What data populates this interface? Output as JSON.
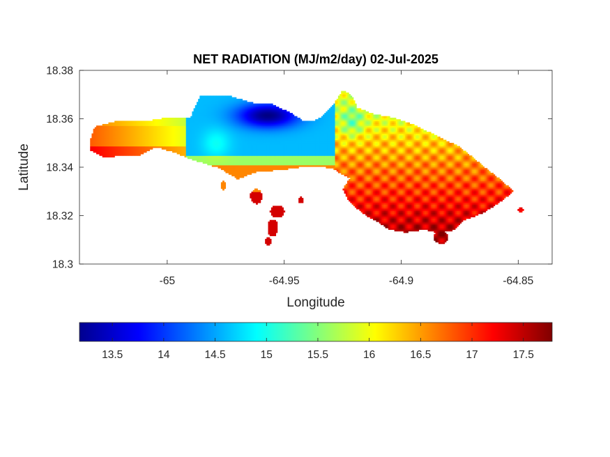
{
  "chart_data": {
    "type": "heatmap",
    "title": "NET RADIATION (MJ/m2/day) 02-Jul-2025",
    "xlabel": "Longitude",
    "ylabel": "Latitude",
    "xlim": [
      -65.0375,
      -64.8355
    ],
    "ylim": [
      18.3,
      18.38
    ],
    "xticks": [
      -65,
      -64.95,
      -64.9,
      -64.85
    ],
    "xtick_labels": [
      "-65",
      "-64.95",
      "-64.9",
      "-64.85"
    ],
    "yticks": [
      18.3,
      18.32,
      18.34,
      18.36,
      18.38
    ],
    "ytick_labels": [
      "18.3",
      "18.32",
      "18.34",
      "18.36",
      "18.38"
    ],
    "colormap": "jet",
    "clim": [
      13.18,
      17.78
    ],
    "colorbar": {
      "location": "southoutside",
      "ticks": [
        13.5,
        14,
        14.5,
        15,
        15.5,
        16,
        16.5,
        17,
        17.5
      ],
      "tick_labels": [
        "13.5",
        "14",
        "14.5",
        "15",
        "15.5",
        "16",
        "16.5",
        "17",
        "17.5"
      ]
    },
    "regions": [
      {
        "name": "west",
        "lon": [
          -65.033,
          -64.985
        ],
        "lat": [
          18.343,
          18.364
        ],
        "value_west": 16.8,
        "value_east": 15.8
      },
      {
        "name": "center",
        "lon": [
          -64.99,
          -64.93
        ],
        "lat": [
          18.338,
          18.37
        ],
        "min_value": 13.2,
        "typical_value": 14.6
      },
      {
        "name": "east",
        "lon": [
          -64.93,
          -64.848
        ],
        "lat": [
          18.312,
          18.362
        ],
        "value_north": 15.9,
        "value_south": 17.6
      },
      {
        "name": "islets",
        "lon": [
          -64.962,
          -64.948
        ],
        "lat": [
          18.308,
          18.328
        ],
        "value": 17.4
      }
    ]
  }
}
